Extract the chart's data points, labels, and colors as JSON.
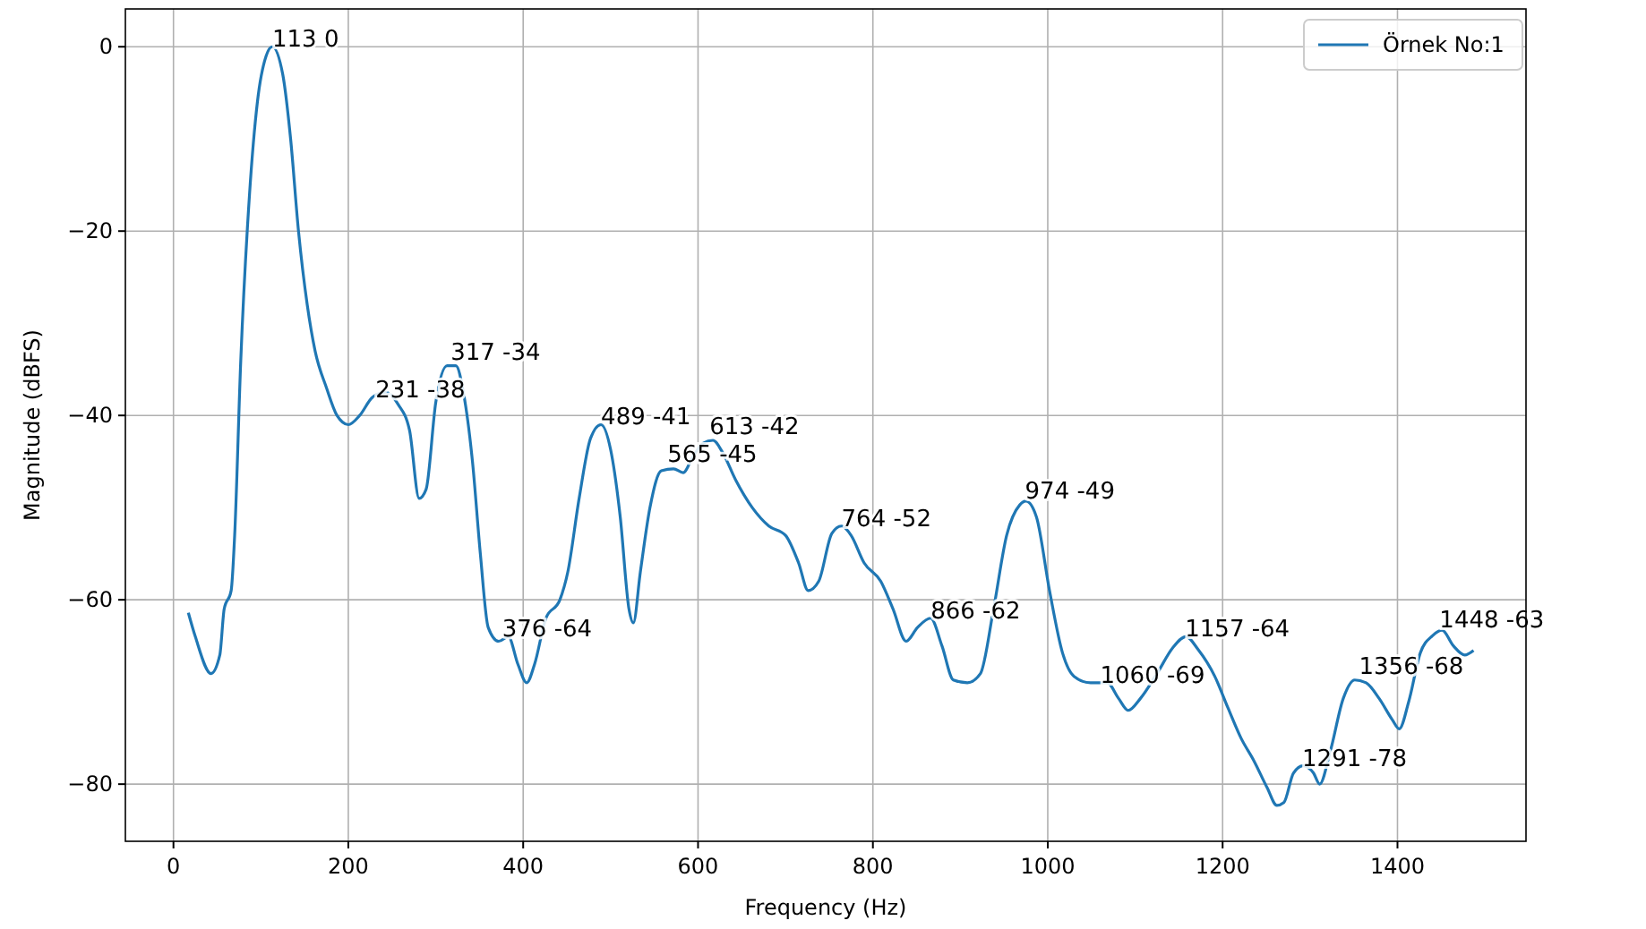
{
  "chart_data": {
    "type": "line",
    "xlabel": "Frequency (Hz)",
    "ylabel": "Magnitude (dBFS)",
    "xlim": [
      -55,
      1547
    ],
    "ylim": [
      -86.2,
      4.1
    ],
    "xticks": [
      0,
      200,
      400,
      600,
      800,
      1000,
      1200,
      1400
    ],
    "yticks": [
      0,
      {
        "value": -20,
        "label": "−20"
      },
      {
        "value": -40,
        "label": "−40"
      },
      {
        "value": -60,
        "label": "−60"
      },
      {
        "value": -80,
        "label": "−80"
      }
    ],
    "grid": true,
    "legend": "top right",
    "series": [
      {
        "name": "Örnek No:1",
        "color": "#1f77b4",
        "x": [
          17,
          25,
          43,
          53,
          58,
          66,
          70,
          77,
          87,
          96,
          106,
          113,
          125,
          134,
          143,
          153,
          162,
          175,
          187,
          200,
          213,
          228,
          243,
          257,
          270,
          281,
          289,
          300,
          313,
          323,
          332,
          342,
          351,
          360,
          372,
          383,
          394,
          404,
          413,
          426,
          442,
          451,
          464,
          477,
          489,
          500,
          511,
          521,
          526,
          534,
          545,
          558,
          572,
          583,
          594,
          606,
          617,
          628,
          643,
          662,
          681,
          700,
          715,
          726,
          738,
          753,
          764,
          775,
          790,
          809,
          823,
          838,
          851,
          866,
          879,
          892,
          908,
          923,
          938,
          953,
          968,
          975,
          987,
          1002,
          1017,
          1030,
          1049,
          1068,
          1081,
          1092,
          1106,
          1125,
          1143,
          1158,
          1172,
          1191,
          1206,
          1221,
          1236,
          1251,
          1262,
          1270,
          1281,
          1292,
          1304,
          1311,
          1323,
          1338,
          1351,
          1364,
          1379,
          1394,
          1402,
          1413,
          1426,
          1440,
          1451,
          1464,
          1477,
          1487
        ],
        "values": [
          -61.4,
          -64,
          -68,
          -66,
          -61,
          -59,
          -53,
          -34,
          -16,
          -6,
          -1,
          0,
          -3,
          -10,
          -20,
          -28,
          -33,
          -37,
          -40,
          -41,
          -40,
          -38,
          -37.5,
          -38.8,
          -41.6,
          -49,
          -48,
          -38.6,
          -34.6,
          -34.6,
          -37.7,
          -45,
          -55,
          -63,
          -64.5,
          -64,
          -67,
          -69,
          -67,
          -62,
          -60,
          -57,
          -49,
          -42.5,
          -41,
          -43.7,
          -51,
          -61,
          -62.5,
          -57,
          -50,
          -46,
          -45.8,
          -46.2,
          -44.5,
          -43,
          -42.7,
          -44,
          -47,
          -50,
          -52,
          -53,
          -56,
          -59,
          -58,
          -52.8,
          -52,
          -53,
          -56,
          -58,
          -61,
          -64.5,
          -63,
          -62,
          -65,
          -68.7,
          -69,
          -68,
          -61,
          -53,
          -49.7,
          -49.3,
          -51,
          -59,
          -65.8,
          -68.3,
          -69,
          -69,
          -70.7,
          -72,
          -70.7,
          -68,
          -65.2,
          -64,
          -65.4,
          -68.3,
          -71.7,
          -75,
          -77.5,
          -80.4,
          -82.3,
          -82,
          -78.8,
          -78,
          -78.8,
          -80,
          -76.5,
          -70.7,
          -68.7,
          -69,
          -70.7,
          -73,
          -74,
          -71,
          -65.8,
          -63.9,
          -63.3,
          -65,
          -66,
          -65.5
        ]
      }
    ],
    "annotations": [
      {
        "text": "113 0",
        "x": 113,
        "y": 0
      },
      {
        "text": "231 -38",
        "x": 231,
        "y": -38
      },
      {
        "text": "317 -34",
        "x": 317,
        "y": -34
      },
      {
        "text": "376 -64",
        "x": 376,
        "y": -64
      },
      {
        "text": "489 -41",
        "x": 489,
        "y": -41
      },
      {
        "text": "565 -45",
        "x": 565,
        "y": -45
      },
      {
        "text": "613 -42",
        "x": 613,
        "y": -42
      },
      {
        "text": "764 -52",
        "x": 764,
        "y": -52
      },
      {
        "text": "866 -62",
        "x": 866,
        "y": -62
      },
      {
        "text": "974 -49",
        "x": 974,
        "y": -49
      },
      {
        "text": "1060 -69",
        "x": 1060,
        "y": -69
      },
      {
        "text": "1157 -64",
        "x": 1157,
        "y": -64
      },
      {
        "text": "1291 -78",
        "x": 1291,
        "y": -78
      },
      {
        "text": "1356 -68",
        "x": 1356,
        "y": -68
      },
      {
        "text": "1448 -63",
        "x": 1448,
        "y": -63
      }
    ]
  }
}
